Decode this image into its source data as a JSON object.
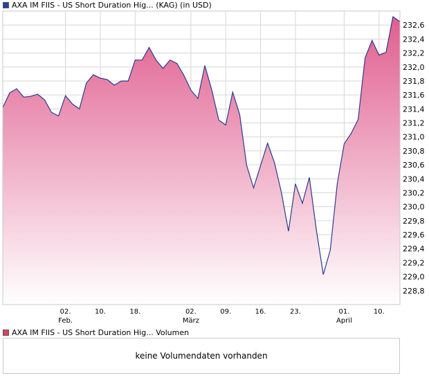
{
  "legend_main": {
    "label": "AXA IM FIIS - US Short Duration Hig... (KAG) (in USD)",
    "color": "#2c3e9e"
  },
  "legend_volume": {
    "label": "AXA IM FIIS - US Short Duration Hig... Volumen",
    "color": "#d9435f"
  },
  "volume_message": "keine Volumendaten vorhanden",
  "colors": {
    "line": "#2b3a8f",
    "fill_top": "#e05e8e",
    "fill_bottom": "#ffffff",
    "grid": "#d6d6d6",
    "frame": "#c8c8c8"
  },
  "chart_data": {
    "type": "area",
    "ylim": [
      228.6,
      232.8
    ],
    "yticks": [
      228.8,
      229.0,
      229.2,
      229.4,
      229.6,
      229.8,
      230.0,
      230.2,
      230.4,
      230.6,
      230.8,
      231.0,
      231.2,
      231.4,
      231.6,
      231.8,
      232.0,
      232.2,
      232.4,
      232.6
    ],
    "ytick_labels": [
      "228,8",
      "229,0",
      "229,2",
      "229,4",
      "229,6",
      "229,8",
      "230,0",
      "230,2",
      "230,4",
      "230,6",
      "230,8",
      "231,0",
      "231,2",
      "231,4",
      "231,6",
      "231,8",
      "232,0",
      "232,2",
      "232,4",
      "232,6"
    ],
    "xticks": [
      {
        "index": 18,
        "label": "02.",
        "sublabel": "Feb."
      },
      {
        "index": 23,
        "label": "10.",
        "sublabel": ""
      },
      {
        "index": 28,
        "label": "18.",
        "sublabel": ""
      },
      {
        "index": 36,
        "label": "02.",
        "sublabel": "März"
      },
      {
        "index": 41,
        "label": "09.",
        "sublabel": ""
      },
      {
        "index": 46,
        "label": "16.",
        "sublabel": ""
      },
      {
        "index": 51,
        "label": "23.",
        "sublabel": ""
      },
      {
        "index": 58,
        "label": "01.",
        "sublabel": "April"
      },
      {
        "index": 63,
        "label": "10.",
        "sublabel": ""
      }
    ],
    "x_range": [
      9,
      66
    ],
    "series": [
      {
        "values": [
          231.42,
          231.63,
          231.69,
          231.57,
          231.58,
          231.61,
          231.53,
          231.35,
          231.3,
          231.59,
          231.47,
          231.4,
          231.77,
          231.89,
          231.84,
          231.82,
          231.74,
          231.8,
          231.8,
          232.1,
          232.1,
          232.28,
          232.1,
          231.98,
          232.1,
          232.05,
          231.88,
          231.67,
          231.55,
          232.02,
          231.67,
          231.24,
          231.17,
          231.64,
          231.32,
          230.59,
          230.27,
          230.59,
          230.91,
          230.63,
          230.2,
          229.65,
          230.33,
          230.05,
          230.42,
          229.67,
          229.03,
          229.38,
          230.33,
          230.9,
          231.05,
          231.25,
          232.13,
          232.38,
          232.17,
          232.21,
          232.72,
          232.65
        ]
      }
    ]
  }
}
